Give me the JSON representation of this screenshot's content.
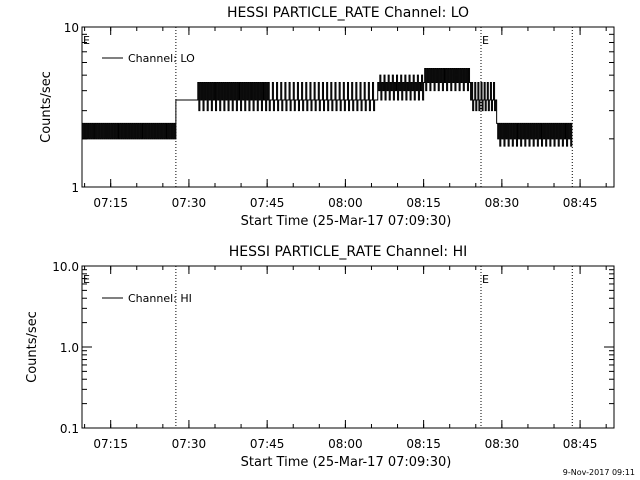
{
  "chart_data": [
    {
      "type": "line",
      "title": "HESSI PARTICLE_RATE Channel: LO",
      "xlabel": "Start Time (25-Mar-17 07:09:30)",
      "ylabel": "Counts/sec",
      "yscale": "log",
      "xlim": [
        "07:09:30",
        "08:51:30"
      ],
      "ylim": [
        1,
        10
      ],
      "x_ticks": [
        "07:15",
        "07:30",
        "07:45",
        "08:00",
        "08:15",
        "08:30",
        "08:45"
      ],
      "y_ticks": [
        "1",
        "10"
      ],
      "grid": false,
      "legend": {
        "placement": "top-left",
        "entries": [
          "Channel: LO"
        ]
      },
      "event_markers": [
        {
          "time": "07:09:30",
          "label": "E"
        },
        {
          "time": "07:27:30",
          "label": ""
        },
        {
          "time": "08:26:00",
          "label": "E"
        },
        {
          "time": "08:43:30",
          "label": ""
        }
      ],
      "series": [
        {
          "name": "Channel: LO",
          "segments": [
            {
              "start": "07:09:30",
              "end": "07:27:30",
              "pattern": "alternating",
              "values": [
                2.5,
                2.0
              ]
            },
            {
              "start": "07:27:30",
              "end": "07:31:30",
              "pattern": "flat",
              "values": [
                3.5
              ]
            },
            {
              "start": "07:31:30",
              "end": "07:45:00",
              "pattern": "alternating",
              "values": [
                3.5,
                4.5,
                3.0,
                4.5
              ]
            },
            {
              "start": "07:45:00",
              "end": "08:06:00",
              "pattern": "alternating",
              "values": [
                3.5,
                4.5,
                3.0,
                3.5
              ]
            },
            {
              "start": "08:06:00",
              "end": "08:15:00",
              "pattern": "alternating",
              "values": [
                3.5,
                4.5,
                4.0,
                5.0
              ]
            },
            {
              "start": "08:15:00",
              "end": "08:24:00",
              "pattern": "alternating",
              "values": [
                4.5,
                5.5,
                4.0,
                5.5
              ]
            },
            {
              "start": "08:24:00",
              "end": "08:29:00",
              "pattern": "alternating",
              "values": [
                3.5,
                4.5,
                3.0
              ]
            },
            {
              "start": "08:29:00",
              "end": "08:43:30",
              "pattern": "alternating",
              "values": [
                2.5,
                2.0,
                2.5,
                1.8
              ]
            }
          ]
        }
      ]
    },
    {
      "type": "line",
      "title": "HESSI PARTICLE_RATE Channel: HI",
      "xlabel": "Start Time (25-Mar-17 07:09:30)",
      "ylabel": "Counts/sec",
      "yscale": "log",
      "xlim": [
        "07:09:30",
        "08:51:30"
      ],
      "ylim": [
        0.1,
        10
      ],
      "x_ticks": [
        "07:15",
        "07:30",
        "07:45",
        "08:00",
        "08:15",
        "08:30",
        "08:45"
      ],
      "y_ticks": [
        "0.1",
        "1.0",
        "10.0"
      ],
      "grid": false,
      "legend": {
        "placement": "top-left",
        "entries": [
          "Channel: HI"
        ]
      },
      "event_markers": [
        {
          "time": "07:09:30",
          "label": "E"
        },
        {
          "time": "07:27:30",
          "label": ""
        },
        {
          "time": "08:26:00",
          "label": "E"
        },
        {
          "time": "08:43:30",
          "label": ""
        }
      ],
      "series": [
        {
          "name": "Channel: HI",
          "segments": []
        }
      ]
    }
  ],
  "footer": {
    "timestamp": "9-Nov-2017 09:11"
  }
}
